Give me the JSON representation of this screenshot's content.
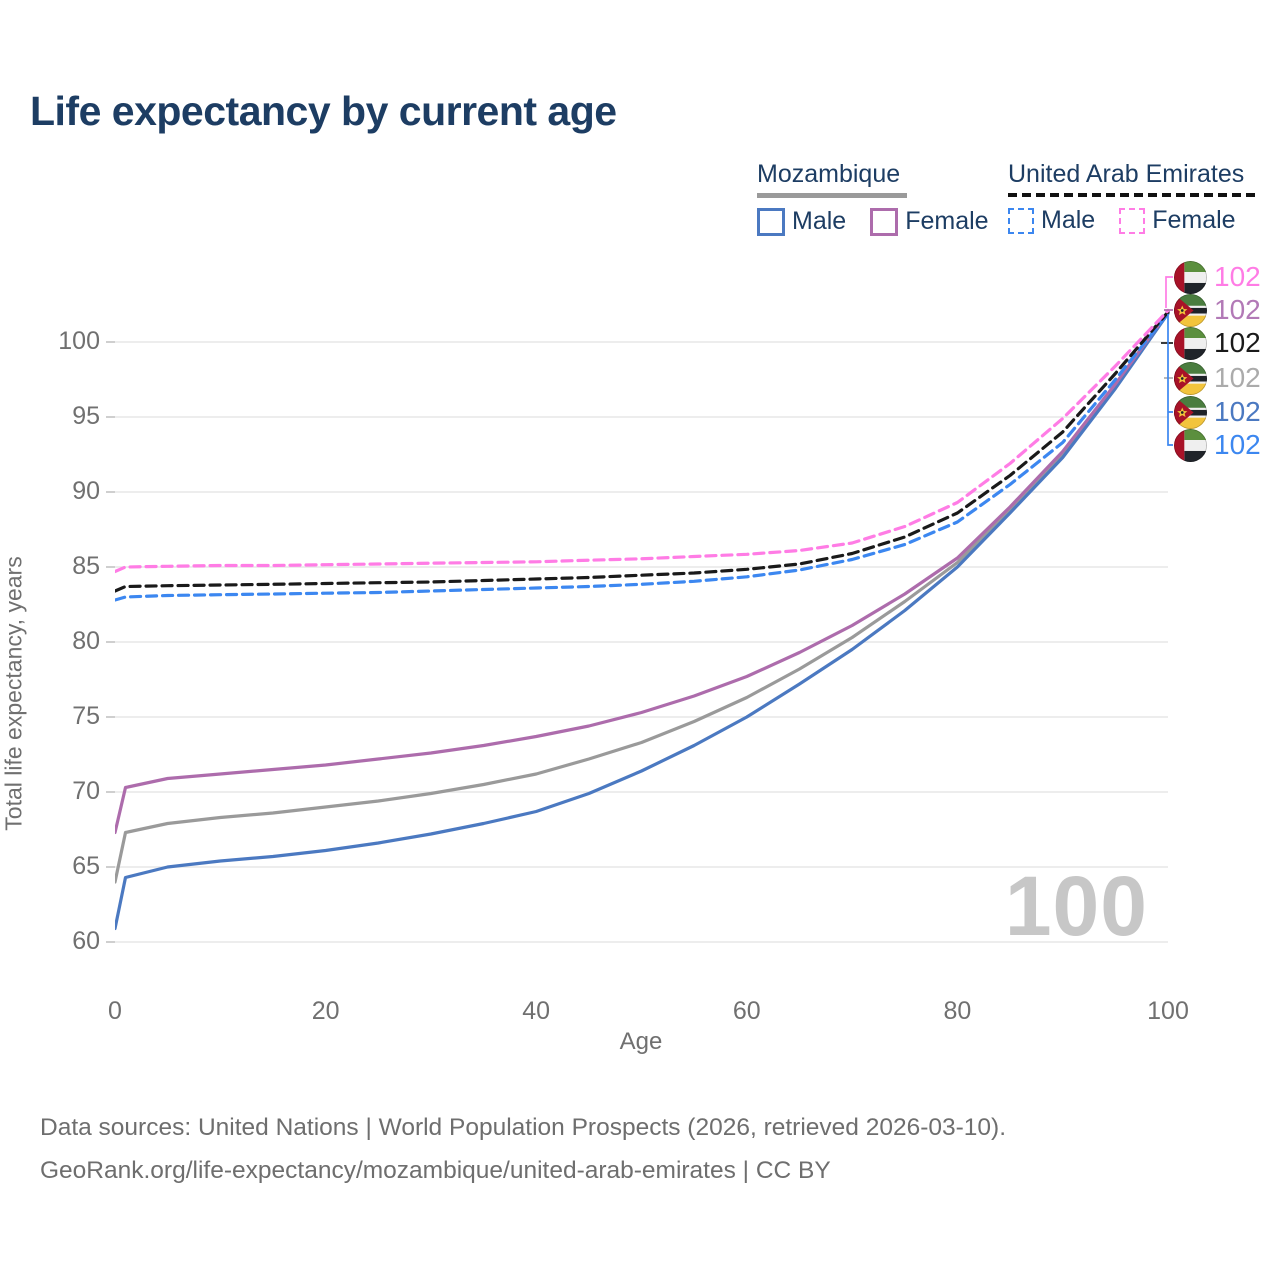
{
  "title": "Life expectancy by current age",
  "legend": {
    "groups": [
      {
        "label": "Mozambique",
        "line_style": "solid",
        "underline_color": "#9a9a9a",
        "items": [
          {
            "label": "Male",
            "series_key": "moz-male"
          },
          {
            "label": "Female",
            "series_key": "moz-female"
          }
        ]
      },
      {
        "label": "United Arab Emirates",
        "line_style": "dashed",
        "underline_color": "#1a1a1a",
        "items": [
          {
            "label": "Male",
            "series_key": "uae-male"
          },
          {
            "label": "Female",
            "series_key": "uae-female"
          }
        ]
      }
    ]
  },
  "chart_data": {
    "type": "line",
    "title": "Life expectancy by current age",
    "xlabel": "Age",
    "ylabel": "Total life expectancy, years",
    "xlim": [
      0,
      100
    ],
    "ylim": [
      58,
      105
    ],
    "x_ticks": [
      0,
      20,
      40,
      60,
      80,
      100
    ],
    "y_ticks": [
      60,
      65,
      70,
      75,
      80,
      85,
      90,
      95,
      100
    ],
    "grid": true,
    "gridline_color": "#e7e7e7",
    "x": [
      0,
      1,
      5,
      10,
      15,
      20,
      25,
      30,
      35,
      40,
      45,
      50,
      55,
      60,
      65,
      70,
      75,
      80,
      85,
      90,
      95,
      100
    ],
    "series": [
      {
        "key": "moz-total",
        "name": "Mozambique Total",
        "country": "Mozambique",
        "sex": "Both",
        "color": "#9a9a9a",
        "dashed": false,
        "values": [
          64.0,
          67.3,
          67.9,
          68.3,
          68.6,
          69.0,
          69.4,
          69.9,
          70.5,
          71.2,
          72.2,
          73.3,
          74.7,
          76.3,
          78.2,
          80.3,
          82.7,
          85.3,
          88.8,
          92.5,
          97.0,
          101.9
        ]
      },
      {
        "key": "moz-male",
        "name": "Mozambique Male",
        "country": "Mozambique",
        "sex": "Male",
        "color": "#4b79c1",
        "dashed": false,
        "values": [
          60.9,
          64.3,
          65.0,
          65.4,
          65.7,
          66.1,
          66.6,
          67.2,
          67.9,
          68.7,
          69.9,
          71.4,
          73.1,
          75.0,
          77.2,
          79.5,
          82.1,
          85.0,
          88.6,
          92.3,
          96.9,
          101.9
        ]
      },
      {
        "key": "moz-female",
        "name": "Mozambique Female",
        "country": "Mozambique",
        "sex": "Female",
        "color": "#ad6cac",
        "dashed": false,
        "values": [
          67.3,
          70.3,
          70.9,
          71.2,
          71.5,
          71.8,
          72.2,
          72.6,
          73.1,
          73.7,
          74.4,
          75.3,
          76.4,
          77.7,
          79.3,
          81.1,
          83.2,
          85.6,
          89.0,
          92.7,
          97.2,
          102.0
        ]
      },
      {
        "key": "uae-male",
        "name": "United Arab Emirates Male",
        "country": "United Arab Emirates",
        "sex": "Male",
        "color": "#3c87f0",
        "dashed": true,
        "values": [
          82.8,
          83.0,
          83.1,
          83.15,
          83.2,
          83.25,
          83.3,
          83.4,
          83.5,
          83.6,
          83.7,
          83.85,
          84.05,
          84.35,
          84.8,
          85.5,
          86.5,
          88.0,
          90.5,
          93.3,
          97.5,
          101.9
        ]
      },
      {
        "key": "uae-total",
        "name": "United Arab Emirates Total",
        "country": "United Arab Emirates",
        "sex": "Both",
        "color": "#1a1a1a",
        "dashed": true,
        "values": [
          83.4,
          83.7,
          83.75,
          83.8,
          83.85,
          83.9,
          83.95,
          84.0,
          84.1,
          84.2,
          84.3,
          84.45,
          84.6,
          84.85,
          85.2,
          85.9,
          87.0,
          88.6,
          91.1,
          94.0,
          97.9,
          102.0
        ]
      },
      {
        "key": "uae-female",
        "name": "United Arab Emirates Female",
        "country": "United Arab Emirates",
        "sex": "Female",
        "color": "#ff7ce5",
        "dashed": true,
        "values": [
          84.7,
          85.0,
          85.05,
          85.1,
          85.1,
          85.15,
          85.2,
          85.25,
          85.3,
          85.35,
          85.45,
          85.55,
          85.7,
          85.85,
          86.1,
          86.6,
          87.7,
          89.3,
          91.9,
          94.9,
          98.4,
          102.1
        ]
      }
    ],
    "end_labels": [
      {
        "value": "102",
        "flag": "are",
        "series_key": "uae-female",
        "color": "#ff7ce5"
      },
      {
        "value": "102",
        "flag": "moz",
        "series_key": "moz-female",
        "color": "#b279b6"
      },
      {
        "value": "102",
        "flag": "are",
        "series_key": "uae-total",
        "color": "#1a1a1a"
      },
      {
        "value": "102",
        "flag": "moz",
        "series_key": "moz-total",
        "color": "#ababab"
      },
      {
        "value": "102",
        "flag": "moz",
        "series_key": "moz-male",
        "color": "#4b79c1"
      },
      {
        "value": "102",
        "flag": "are",
        "series_key": "uae-male",
        "color": "#3c87f0"
      }
    ],
    "legend_position": "top-right"
  },
  "watermark": "100",
  "footer": {
    "line1": "Data sources: United Nations | World Population Prospects (2026, retrieved 2026-03-10).",
    "line2": "GeoRank.org/life-expectancy/mozambique/united-arab-emirates | CC BY"
  }
}
